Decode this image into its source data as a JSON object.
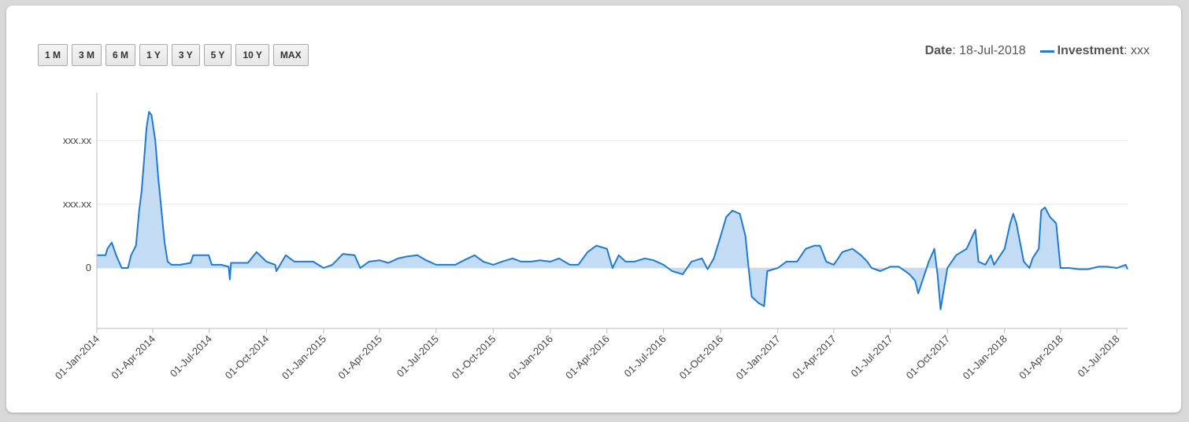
{
  "range_buttons": [
    "1 M",
    "3 M",
    "6 M",
    "1 Y",
    "3 Y",
    "5 Y",
    "10 Y",
    "MAX"
  ],
  "info": {
    "date_label": "Date",
    "date_value": ": 18-Jul-2018",
    "series_label": "Investment",
    "series_value": ": xxx"
  },
  "colors": {
    "line": "#1f7ad4",
    "fill": "#c4dcf3",
    "grid": "#e6e6e6"
  },
  "chart_data": {
    "type": "area",
    "series_name": "Investment",
    "y_tick_labels": [
      "0",
      "xxx.xx",
      "xxx.xx"
    ],
    "y_ticks": [
      0,
      1,
      2
    ],
    "ylim": [
      -0.95,
      2.75
    ],
    "x_tick_labels": [
      "01-Jan-2014",
      "01-Apr-2014",
      "01-Jul-2014",
      "01-Oct-2014",
      "01-Jan-2015",
      "01-Apr-2015",
      "01-Jul-2015",
      "01-Oct-2015",
      "01-Jan-2016",
      "01-Apr-2016",
      "01-Jul-2016",
      "01-Oct-2016",
      "01-Jan-2017",
      "01-Apr-2017",
      "01-Jul-2017",
      "01-Oct-2017",
      "01-Jan-2018",
      "01-Apr-2018",
      "01-Jul-2018"
    ],
    "x_range": [
      "01-Jan-2014",
      "18-Jul-2018"
    ],
    "grid": true,
    "points": [
      [
        "01-Jan-2014",
        0.2
      ],
      [
        "15-Jan-2014",
        0.2
      ],
      [
        "18-Jan-2014",
        0.3
      ],
      [
        "25-Jan-2014",
        0.4
      ],
      [
        "01-Feb-2014",
        0.2
      ],
      [
        "10-Feb-2014",
        0.0
      ],
      [
        "20-Feb-2014",
        0.0
      ],
      [
        "25-Feb-2014",
        0.2
      ],
      [
        "05-Mar-2014",
        0.35
      ],
      [
        "10-Mar-2014",
        0.9
      ],
      [
        "14-Mar-2014",
        1.2
      ],
      [
        "18-Mar-2014",
        1.7
      ],
      [
        "22-Mar-2014",
        2.2
      ],
      [
        "26-Mar-2014",
        2.45
      ],
      [
        "30-Mar-2014",
        2.4
      ],
      [
        "05-Apr-2014",
        2.0
      ],
      [
        "10-Apr-2014",
        1.4
      ],
      [
        "15-Apr-2014",
        0.9
      ],
      [
        "20-Apr-2014",
        0.4
      ],
      [
        "25-Apr-2014",
        0.1
      ],
      [
        "01-May-2014",
        0.05
      ],
      [
        "15-May-2014",
        0.05
      ],
      [
        "01-Jun-2014",
        0.08
      ],
      [
        "05-Jun-2014",
        0.2
      ],
      [
        "20-Jun-2014",
        0.2
      ],
      [
        "30-Jun-2014",
        0.2
      ],
      [
        "05-Jul-2014",
        0.05
      ],
      [
        "20-Jul-2014",
        0.05
      ],
      [
        "01-Aug-2014",
        0.02
      ],
      [
        "03-Aug-2014",
        -0.18
      ],
      [
        "05-Aug-2014",
        0.08
      ],
      [
        "01-Sep-2014",
        0.08
      ],
      [
        "15-Sep-2014",
        0.25
      ],
      [
        "01-Oct-2014",
        0.1
      ],
      [
        "15-Oct-2014",
        0.05
      ],
      [
        "17-Oct-2014",
        -0.05
      ],
      [
        "01-Nov-2014",
        0.2
      ],
      [
        "15-Nov-2014",
        0.1
      ],
      [
        "01-Dec-2014",
        0.1
      ],
      [
        "15-Dec-2014",
        0.1
      ],
      [
        "01-Jan-2015",
        0.0
      ],
      [
        "15-Jan-2015",
        0.05
      ],
      [
        "01-Feb-2015",
        0.22
      ],
      [
        "20-Feb-2015",
        0.2
      ],
      [
        "01-Mar-2015",
        0.0
      ],
      [
        "15-Mar-2015",
        0.1
      ],
      [
        "01-Apr-2015",
        0.12
      ],
      [
        "15-Apr-2015",
        0.08
      ],
      [
        "01-May-2015",
        0.15
      ],
      [
        "15-May-2015",
        0.18
      ],
      [
        "01-Jun-2015",
        0.2
      ],
      [
        "15-Jun-2015",
        0.12
      ],
      [
        "01-Jul-2015",
        0.05
      ],
      [
        "15-Jul-2015",
        0.05
      ],
      [
        "01-Aug-2015",
        0.05
      ],
      [
        "15-Aug-2015",
        0.12
      ],
      [
        "01-Sep-2015",
        0.2
      ],
      [
        "15-Sep-2015",
        0.1
      ],
      [
        "01-Oct-2015",
        0.05
      ],
      [
        "15-Oct-2015",
        0.1
      ],
      [
        "01-Nov-2015",
        0.15
      ],
      [
        "15-Nov-2015",
        0.1
      ],
      [
        "01-Dec-2015",
        0.1
      ],
      [
        "15-Dec-2015",
        0.12
      ],
      [
        "01-Jan-2016",
        0.1
      ],
      [
        "15-Jan-2016",
        0.15
      ],
      [
        "01-Feb-2016",
        0.05
      ],
      [
        "15-Feb-2016",
        0.05
      ],
      [
        "01-Mar-2016",
        0.25
      ],
      [
        "15-Mar-2016",
        0.35
      ],
      [
        "01-Apr-2016",
        0.3
      ],
      [
        "10-Apr-2016",
        0.0
      ],
      [
        "20-Apr-2016",
        0.2
      ],
      [
        "01-May-2016",
        0.1
      ],
      [
        "15-May-2016",
        0.1
      ],
      [
        "01-Jun-2016",
        0.15
      ],
      [
        "15-Jun-2016",
        0.12
      ],
      [
        "01-Jul-2016",
        0.05
      ],
      [
        "15-Jul-2016",
        -0.05
      ],
      [
        "01-Aug-2016",
        -0.1
      ],
      [
        "15-Aug-2016",
        0.1
      ],
      [
        "01-Sep-2016",
        0.15
      ],
      [
        "10-Sep-2016",
        -0.02
      ],
      [
        "20-Sep-2016",
        0.15
      ],
      [
        "01-Oct-2016",
        0.5
      ],
      [
        "10-Oct-2016",
        0.8
      ],
      [
        "20-Oct-2016",
        0.9
      ],
      [
        "01-Nov-2016",
        0.85
      ],
      [
        "10-Nov-2016",
        0.5
      ],
      [
        "15-Nov-2016",
        0.0
      ],
      [
        "20-Nov-2016",
        -0.45
      ],
      [
        "01-Dec-2016",
        -0.55
      ],
      [
        "10-Dec-2016",
        -0.6
      ],
      [
        "15-Dec-2016",
        -0.05
      ],
      [
        "01-Jan-2017",
        0.0
      ],
      [
        "15-Jan-2017",
        0.1
      ],
      [
        "01-Feb-2017",
        0.1
      ],
      [
        "15-Feb-2017",
        0.3
      ],
      [
        "01-Mar-2017",
        0.35
      ],
      [
        "10-Mar-2017",
        0.35
      ],
      [
        "20-Mar-2017",
        0.1
      ],
      [
        "01-Apr-2017",
        0.05
      ],
      [
        "15-Apr-2017",
        0.25
      ],
      [
        "01-May-2017",
        0.3
      ],
      [
        "15-May-2017",
        0.2
      ],
      [
        "25-May-2017",
        0.1
      ],
      [
        "01-Jun-2017",
        0.0
      ],
      [
        "15-Jun-2017",
        -0.05
      ],
      [
        "01-Jul-2017",
        0.02
      ],
      [
        "15-Jul-2017",
        0.02
      ],
      [
        "01-Aug-2017",
        -0.1
      ],
      [
        "10-Aug-2017",
        -0.2
      ],
      [
        "15-Aug-2017",
        -0.4
      ],
      [
        "01-Sep-2017",
        0.1
      ],
      [
        "10-Sep-2017",
        0.3
      ],
      [
        "15-Sep-2017",
        -0.1
      ],
      [
        "20-Sep-2017",
        -0.65
      ],
      [
        "01-Oct-2017",
        0.0
      ],
      [
        "15-Oct-2017",
        0.2
      ],
      [
        "01-Nov-2017",
        0.3
      ],
      [
        "15-Nov-2017",
        0.6
      ],
      [
        "20-Nov-2017",
        0.1
      ],
      [
        "01-Dec-2017",
        0.05
      ],
      [
        "10-Dec-2017",
        0.2
      ],
      [
        "15-Dec-2017",
        0.05
      ],
      [
        "01-Jan-2018",
        0.3
      ],
      [
        "10-Jan-2018",
        0.7
      ],
      [
        "15-Jan-2018",
        0.85
      ],
      [
        "20-Jan-2018",
        0.7
      ],
      [
        "01-Feb-2018",
        0.1
      ],
      [
        "10-Feb-2018",
        0.0
      ],
      [
        "15-Feb-2018",
        0.15
      ],
      [
        "25-Feb-2018",
        0.3
      ],
      [
        "01-Mar-2018",
        0.9
      ],
      [
        "07-Mar-2018",
        0.95
      ],
      [
        "15-Mar-2018",
        0.8
      ],
      [
        "25-Mar-2018",
        0.7
      ],
      [
        "01-Apr-2018",
        0.0
      ],
      [
        "15-Apr-2018",
        0.0
      ],
      [
        "01-May-2018",
        -0.02
      ],
      [
        "15-May-2018",
        -0.02
      ],
      [
        "01-Jun-2018",
        0.02
      ],
      [
        "15-Jun-2018",
        0.02
      ],
      [
        "01-Jul-2018",
        0.0
      ],
      [
        "15-Jul-2018",
        0.05
      ],
      [
        "18-Jul-2018",
        -0.02
      ]
    ]
  }
}
